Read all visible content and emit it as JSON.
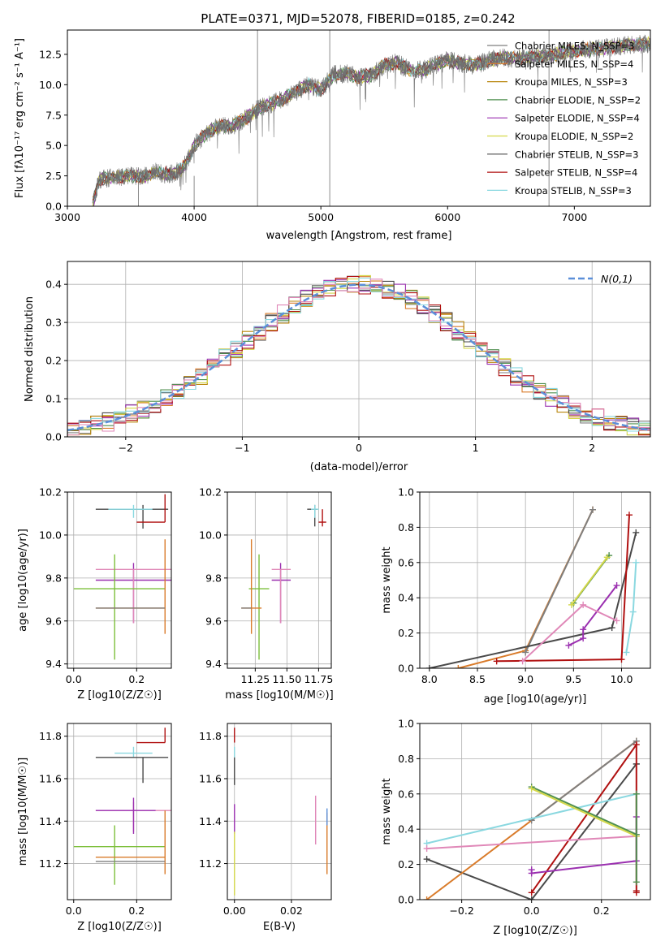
{
  "title": "PLATE=0371, MJD=52078, FIBERID=0185, z=0.242",
  "colors": {
    "chabrier_miles": "#7f7f7f",
    "salpeter_miles": "#d97b2a",
    "kroupa_miles": "#b8860b",
    "chabrier_elodie": "#4f8f4f",
    "salpeter_elodie": "#9b30b0",
    "kroupa_elodie": "#d4d84a",
    "chabrier_stelib": "#4a4a4a",
    "salpeter_stelib": "#b01010",
    "kroupa_stelib": "#8ad8e0",
    "pink": "#e088b8",
    "green": "#7cbf3a",
    "normal": "#5b8fd9"
  },
  "chart_data": [
    {
      "id": "spectrum",
      "type": "line",
      "xlabel": "wavelength [Angstrom, rest frame]",
      "ylabel": "Flux [fλ10⁻¹⁷ erg cm⁻² s⁻¹ A⁻¹]",
      "xlim": [
        3000,
        7600
      ],
      "ylim": [
        0,
        14.5
      ],
      "xticks": [
        "3000",
        "4000",
        "5000",
        "6000",
        "7000"
      ],
      "yticks": [
        "0.0",
        "2.5",
        "5.0",
        "7.5",
        "10.0",
        "12.5"
      ],
      "xtick_values": [
        3000,
        4000,
        5000,
        6000,
        7000
      ],
      "ytick_values": [
        0,
        2.5,
        5,
        7.5,
        10,
        12.5
      ],
      "legend_position": "top-right",
      "continuum": {
        "x": [
          3200,
          3250,
          3400,
          3500,
          3600,
          3700,
          3800,
          3900,
          3950,
          4000,
          4100,
          4200,
          4300,
          4400,
          4500,
          4600,
          4700,
          4800,
          4900,
          5000,
          5100,
          5200,
          5300,
          5400,
          5500,
          5600,
          5700,
          5800,
          5900,
          6000,
          6200,
          6400,
          6600,
          6800,
          7000,
          7200,
          7400,
          7600
        ],
        "y": [
          0.2,
          2.2,
          2.4,
          2.5,
          2.4,
          2.8,
          2.6,
          3.0,
          3.8,
          5.0,
          6.0,
          6.6,
          6.6,
          7.2,
          8.0,
          8.4,
          8.8,
          9.4,
          10.0,
          9.6,
          10.8,
          10.9,
          10.6,
          10.8,
          11.6,
          11.8,
          11.2,
          11.2,
          11.6,
          12.0,
          11.6,
          12.2,
          12.2,
          12.4,
          12.8,
          13.0,
          13.2,
          13.4
        ]
      },
      "legend": [
        "Chabrier MILES, N_SSP=3",
        "Salpeter MILES, N_SSP=4",
        "Kroupa MILES, N_SSP=3",
        "Chabrier ELODIE, N_SSP=2",
        "Salpeter ELODIE, N_SSP=4",
        "Kroupa ELODIE, N_SSP=2",
        "Chabrier STELIB, N_SSP=3",
        "Salpeter STELIB, N_SSP=4",
        "Kroupa STELIB, N_SSP=3"
      ],
      "legend_colors": [
        "#7f7f7f",
        "#d97b2a",
        "#b8860b",
        "#4f8f4f",
        "#9b30b0",
        "#d4d84a",
        "#4a4a4a",
        "#b01010",
        "#8ad8e0"
      ]
    },
    {
      "id": "residuals",
      "type": "histogram",
      "xlabel": "(data-model)/error",
      "ylabel": "Normed distribution",
      "xlim": [
        -2.5,
        2.5
      ],
      "ylim": [
        0,
        0.46
      ],
      "xticks": [
        "−2",
        "−1",
        "0",
        "1",
        "2"
      ],
      "yticks": [
        "0.0",
        "0.1",
        "0.2",
        "0.3",
        "0.4"
      ],
      "xtick_values": [
        -2,
        -1,
        0,
        1,
        2
      ],
      "ytick_values": [
        0,
        0.1,
        0.2,
        0.3,
        0.4
      ],
      "legend": "N(0,1)",
      "legend_position": "top-right",
      "bin_width": 0.1
    },
    {
      "id": "age_vs_Z",
      "type": "errorbar",
      "xlabel": "Z [log10(Z/Z☉)]",
      "ylabel": "age  [log10(age/yr)]",
      "xlim": [
        -0.02,
        0.31
      ],
      "ylim": [
        9.38,
        10.2
      ],
      "xticks": [
        "0.0",
        "0.2"
      ],
      "xtick_values": [
        0,
        0.2
      ],
      "yticks": [
        "9.4",
        "9.6",
        "9.8",
        "10.0",
        "10.2"
      ],
      "ytick_values": [
        9.4,
        9.6,
        9.8,
        10.0,
        10.2
      ],
      "points": [
        {
          "x": 0.22,
          "y": 10.12,
          "xerr": [
            0.15,
            0.08
          ],
          "yerr": [
            0.09,
            0.02
          ],
          "color": "#4a4a4a"
        },
        {
          "x": 0.19,
          "y": 10.12,
          "xerr": [
            0.08,
            0.06
          ],
          "yerr": [
            0.04,
            0.02
          ],
          "color": "#8ad8e0"
        },
        {
          "x": 0.29,
          "y": 10.06,
          "xerr": [
            0.09,
            0.0
          ],
          "yerr": [
            0.0,
            0.13
          ],
          "color": "#b01010"
        },
        {
          "x": 0.19,
          "y": 9.79,
          "xerr": [
            0.12,
            0.12
          ],
          "yerr": [
            0.2,
            0.08
          ],
          "color": "#9b30b0"
        },
        {
          "x": 0.19,
          "y": 9.84,
          "xerr": [
            0.12,
            0.12
          ],
          "yerr": [
            0.25,
            0.0
          ],
          "color": "#e088b8"
        },
        {
          "x": 0.13,
          "y": 9.75,
          "xerr": [
            0.13,
            0.16
          ],
          "yerr": [
            0.33,
            0.16
          ],
          "color": "#7cbf3a"
        },
        {
          "x": 0.29,
          "y": 9.66,
          "xerr": [
            0.22,
            0.0
          ],
          "yerr": [
            0.12,
            0.32
          ],
          "color": "#d97b2a"
        },
        {
          "x": 0.29,
          "y": 9.66,
          "xerr": [
            0.22,
            0.0
          ],
          "yerr": [
            0.0,
            0.0
          ],
          "color": "#7f7f7f"
        }
      ]
    },
    {
      "id": "age_vs_mass",
      "type": "errorbar",
      "xlabel": "mass [log10(M/M☉)]",
      "ylabel": "",
      "xlim": [
        11.03,
        11.85
      ],
      "ylim": [
        9.38,
        10.2
      ],
      "xticks": [
        "11.25",
        "11.50",
        "11.75"
      ],
      "xtick_values": [
        11.25,
        11.5,
        11.75
      ],
      "yticks": [
        "9.4",
        "9.6",
        "9.8",
        "10.0",
        "10.2"
      ],
      "ytick_values": [
        9.4,
        9.6,
        9.8,
        10.0,
        10.2
      ],
      "points": [
        {
          "x": 11.72,
          "y": 10.12,
          "xerr": [
            0.06,
            0.02
          ],
          "yerr": [
            0.08,
            0.02
          ],
          "color": "#4a4a4a"
        },
        {
          "x": 11.72,
          "y": 10.12,
          "xerr": [
            0.03,
            0.03
          ],
          "yerr": [
            0.04,
            0.02
          ],
          "color": "#8ad8e0"
        },
        {
          "x": 11.78,
          "y": 10.06,
          "xerr": [
            0.03,
            0.03
          ],
          "yerr": [
            0.02,
            0.06
          ],
          "color": "#b01010"
        },
        {
          "x": 11.45,
          "y": 9.79,
          "xerr": [
            0.07,
            0.08
          ],
          "yerr": [
            0.2,
            0.08
          ],
          "color": "#9b30b0"
        },
        {
          "x": 11.45,
          "y": 9.84,
          "xerr": [
            0.07,
            0.08
          ],
          "yerr": [
            0.25,
            0.0
          ],
          "color": "#e088b8"
        },
        {
          "x": 11.28,
          "y": 9.75,
          "xerr": [
            0.08,
            0.08
          ],
          "yerr": [
            0.33,
            0.16
          ],
          "color": "#7cbf3a"
        },
        {
          "x": 11.22,
          "y": 9.66,
          "xerr": [
            0.08,
            0.08
          ],
          "yerr": [
            0.12,
            0.32
          ],
          "color": "#d97b2a"
        },
        {
          "x": 11.22,
          "y": 9.66,
          "xerr": [
            0.08,
            0.0
          ],
          "yerr": [
            0.0,
            0.0
          ],
          "color": "#7f7f7f"
        }
      ]
    },
    {
      "id": "weight_vs_age",
      "type": "line",
      "xlabel": "age  [log10(age/yr)]",
      "ylabel": "mass weight",
      "xlim": [
        7.9,
        10.3
      ],
      "ylim": [
        0,
        1
      ],
      "xticks": [
        "8.0",
        "8.5",
        "9.0",
        "9.5",
        "10.0"
      ],
      "xtick_values": [
        8,
        8.5,
        9,
        9.5,
        10
      ],
      "yticks": [
        "0.0",
        "0.2",
        "0.4",
        "0.6",
        "0.8",
        "1.0"
      ],
      "ytick_values": [
        0,
        0.2,
        0.4,
        0.6,
        0.8,
        1.0
      ],
      "series": [
        {
          "color": "#d97b2a",
          "x": [
            8.3,
            9.0,
            9.7
          ],
          "y": [
            0.0,
            0.1,
            0.9
          ]
        },
        {
          "color": "#7f7f7f",
          "x": [
            9.0,
            9.7
          ],
          "y": [
            0.09,
            0.9
          ]
        },
        {
          "color": "#4a4a4a",
          "x": [
            8.0,
            9.9,
            10.15
          ],
          "y": [
            0.0,
            0.23,
            0.77
          ]
        },
        {
          "color": "#b01010",
          "x": [
            8.7,
            10.0,
            10.08
          ],
          "y": [
            0.04,
            0.05,
            0.87
          ]
        },
        {
          "color": "#4f8f4f",
          "x": [
            9.5,
            9.87
          ],
          "y": [
            0.37,
            0.64
          ]
        },
        {
          "color": "#d4d84a",
          "x": [
            9.48,
            9.85
          ],
          "y": [
            0.36,
            0.63
          ]
        },
        {
          "color": "#9b30b0",
          "x": [
            9.45,
            9.6,
            9.6,
            9.95
          ],
          "y": [
            0.13,
            0.17,
            0.22,
            0.47
          ]
        },
        {
          "color": "#e088b8",
          "x": [
            8.97,
            9.6,
            9.95
          ],
          "y": [
            0.04,
            0.36,
            0.27
          ]
        },
        {
          "color": "#8ad8e0",
          "x": [
            10.05,
            10.12,
            10.15
          ],
          "y": [
            0.09,
            0.32,
            0.6
          ]
        }
      ]
    },
    {
      "id": "mass_vs_Z",
      "type": "errorbar",
      "xlabel": "Z [log10(Z/Z☉)]",
      "ylabel": "mass [log10(M/M☉)]",
      "xlim": [
        -0.02,
        0.31
      ],
      "ylim": [
        11.03,
        11.86
      ],
      "xticks": [
        "0.0",
        "0.2"
      ],
      "xtick_values": [
        0,
        0.2
      ],
      "yticks": [
        "11.2",
        "11.4",
        "11.6",
        "11.8"
      ],
      "ytick_values": [
        11.2,
        11.4,
        11.6,
        11.8
      ],
      "points": [
        {
          "x": 0.29,
          "y": 11.77,
          "xerr": [
            0.09,
            0.0
          ],
          "yerr": [
            0.0,
            0.07
          ],
          "color": "#b01010"
        },
        {
          "x": 0.19,
          "y": 11.72,
          "xerr": [
            0.06,
            0.06
          ],
          "yerr": [
            0.02,
            0.03
          ],
          "color": "#8ad8e0"
        },
        {
          "x": 0.22,
          "y": 11.7,
          "xerr": [
            0.15,
            0.08
          ],
          "yerr": [
            0.12,
            0.0
          ],
          "color": "#4a4a4a"
        },
        {
          "x": 0.19,
          "y": 11.45,
          "xerr": [
            0.12,
            0.12
          ],
          "yerr": [
            0.1,
            0.04
          ],
          "color": "#e088b8"
        },
        {
          "x": 0.19,
          "y": 11.45,
          "xerr": [
            0.12,
            0.07
          ],
          "yerr": [
            0.11,
            0.06
          ],
          "color": "#9b30b0"
        },
        {
          "x": 0.13,
          "y": 11.28,
          "xerr": [
            0.13,
            0.16
          ],
          "yerr": [
            0.18,
            0.1
          ],
          "color": "#7cbf3a"
        },
        {
          "x": 0.29,
          "y": 11.23,
          "xerr": [
            0.22,
            0.0
          ],
          "yerr": [
            0.08,
            0.22
          ],
          "color": "#d97b2a"
        },
        {
          "x": 0.29,
          "y": 11.21,
          "xerr": [
            0.22,
            0.0
          ],
          "yerr": [
            0.0,
            0.0
          ],
          "color": "#7f7f7f"
        }
      ]
    },
    {
      "id": "mass_vs_EBV",
      "type": "errorbar",
      "xlabel": "E(B-V)",
      "ylabel": "",
      "xlim": [
        -0.0025,
        0.034
      ],
      "ylim": [
        11.03,
        11.86
      ],
      "xticks": [
        "0.00",
        "0.02"
      ],
      "xtick_values": [
        0,
        0.02
      ],
      "yticks": [
        "11.2",
        "11.4",
        "11.6",
        "11.8"
      ],
      "ytick_values": [
        11.2,
        11.4,
        11.6,
        11.8
      ],
      "points": [
        {
          "x": 0.0,
          "y": 11.77,
          "xerr": [
            0,
            0
          ],
          "yerr": [
            0.0,
            0.07
          ],
          "color": "#b01010"
        },
        {
          "x": 0.0,
          "y": 11.72,
          "xerr": [
            0,
            0
          ],
          "yerr": [
            0.02,
            0.03
          ],
          "color": "#8ad8e0"
        },
        {
          "x": 0.0,
          "y": 11.65,
          "xerr": [
            0,
            0
          ],
          "yerr": [
            0.08,
            0.05
          ],
          "color": "#4a4a4a"
        },
        {
          "x": 0.0,
          "y": 11.42,
          "xerr": [
            0,
            0
          ],
          "yerr": [
            0.08,
            0.06
          ],
          "color": "#9b30b0"
        },
        {
          "x": 0.0,
          "y": 11.25,
          "xerr": [
            0,
            0
          ],
          "yerr": [
            0.2,
            0.1
          ],
          "color": "#d4d84a"
        },
        {
          "x": 0.0285,
          "y": 11.39,
          "xerr": [
            0,
            0
          ],
          "yerr": [
            0.1,
            0.13
          ],
          "color": "#e088b8"
        },
        {
          "x": 0.0325,
          "y": 11.3,
          "xerr": [
            0,
            0
          ],
          "yerr": [
            0.15,
            0.14
          ],
          "color": "#d97b2a"
        },
        {
          "x": 0.0325,
          "y": 11.4,
          "xerr": [
            0,
            0
          ],
          "yerr": [
            0.02,
            0.06
          ],
          "color": "#5b8fd9"
        }
      ]
    },
    {
      "id": "weight_vs_Z",
      "type": "line",
      "xlabel": "Z [log10(Z/Z☉)]",
      "ylabel": "mass weight",
      "xlim": [
        -0.32,
        0.34
      ],
      "ylim": [
        0,
        1
      ],
      "xticks": [
        "−0.2",
        "0.0",
        "0.2"
      ],
      "xtick_values": [
        -0.2,
        0,
        0.2
      ],
      "yticks": [
        "0.0",
        "0.2",
        "0.4",
        "0.6",
        "0.8",
        "1.0"
      ],
      "ytick_values": [
        0,
        0.2,
        0.4,
        0.6,
        0.8,
        1.0
      ],
      "series": [
        {
          "color": "#4a4a4a",
          "x": [
            -0.3,
            0.0,
            0.3,
            0.3
          ],
          "y": [
            0.23,
            0.0,
            0.77,
            0.77
          ]
        },
        {
          "color": "#d97b2a",
          "x": [
            -0.3,
            0.3
          ],
          "y": [
            0.0,
            0.9
          ]
        },
        {
          "color": "#7f7f7f",
          "x": [
            0.0,
            0.3
          ],
          "y": [
            0.45,
            0.9
          ]
        },
        {
          "color": "#b01010",
          "x": [
            0.0,
            0.3,
            0.3,
            0.3
          ],
          "y": [
            0.04,
            0.88,
            0.05,
            0.04
          ]
        },
        {
          "color": "#8ad8e0",
          "x": [
            -0.3,
            0.3
          ],
          "y": [
            0.32,
            0.6
          ]
        },
        {
          "color": "#e088b8",
          "x": [
            -0.3,
            0.3
          ],
          "y": [
            0.29,
            0.36
          ]
        },
        {
          "color": "#9b30b0",
          "x": [
            0.0,
            0.0,
            0.3,
            0.3
          ],
          "y": [
            0.17,
            0.15,
            0.22,
            0.47
          ]
        },
        {
          "color": "#4f8f4f",
          "x": [
            0.0,
            0.3
          ],
          "y": [
            0.64,
            0.37
          ]
        },
        {
          "color": "#d4d84a",
          "x": [
            0.0,
            0.3
          ],
          "y": [
            0.63,
            0.36
          ]
        },
        {
          "color": "#4f8f4f",
          "x": [
            0.3,
            0.3
          ],
          "y": [
            0.1,
            0.6
          ]
        }
      ]
    }
  ]
}
